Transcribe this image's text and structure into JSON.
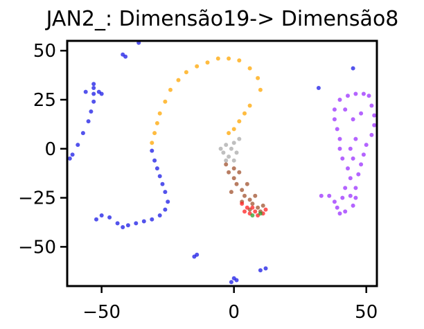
{
  "chart_data": {
    "type": "scatter",
    "title": "JAN2_: Dimensão19-> Dimensão8",
    "xlabel": "",
    "ylabel": "",
    "xlim": [
      -63,
      54
    ],
    "ylim": [
      -70,
      55
    ],
    "xticks": [
      -50,
      0,
      50
    ],
    "yticks": [
      50,
      25,
      0,
      -25,
      -50
    ],
    "xtick_labels": [
      "−50",
      "0",
      "50"
    ],
    "ytick_labels": [
      "50",
      "25",
      "0",
      "−25",
      "−50"
    ],
    "grid": false,
    "legend": "none",
    "colors": {
      "blue": "#1a1ae6",
      "orange": "#ffa500",
      "purple": "#9b30ff",
      "gray": "#a9a9a9",
      "brown": "#a0522d",
      "red": "#ff2020",
      "green": "#2ca02c"
    },
    "series": [
      {
        "color": "#1a1ae6",
        "points": [
          [
            -62,
            -5
          ],
          [
            -61,
            -3
          ],
          [
            -59,
            2
          ],
          [
            -57,
            8
          ],
          [
            -55,
            14
          ],
          [
            -54,
            19
          ],
          [
            -53,
            24
          ],
          [
            -53,
            28
          ],
          [
            -53,
            31
          ],
          [
            -53,
            33
          ],
          [
            -56,
            29
          ],
          [
            -51,
            29
          ],
          [
            -50,
            28
          ],
          [
            -42,
            48
          ],
          [
            -41,
            47
          ],
          [
            -36,
            54
          ],
          [
            -31,
            -1
          ],
          [
            -30,
            -6
          ],
          [
            -29,
            -10
          ],
          [
            -28,
            -14
          ],
          [
            -27,
            -18
          ],
          [
            -26,
            -22
          ],
          [
            -25,
            -27
          ],
          [
            -26,
            -31
          ],
          [
            -28,
            -34
          ],
          [
            -31,
            -36
          ],
          [
            -34,
            -37
          ],
          [
            -37,
            -38
          ],
          [
            -40,
            -39
          ],
          [
            -42,
            -40
          ],
          [
            -44,
            -38
          ],
          [
            -47,
            -35
          ],
          [
            -50,
            -34
          ],
          [
            -52,
            -36
          ],
          [
            -14,
            -54
          ],
          [
            -15,
            -55
          ],
          [
            0,
            -66
          ],
          [
            1,
            -67
          ],
          [
            -1,
            -68
          ],
          [
            10,
            -62
          ],
          [
            12,
            -61
          ],
          [
            32,
            31
          ],
          [
            45,
            41
          ]
        ]
      },
      {
        "color": "#ffa500",
        "points": [
          [
            -31,
            3
          ],
          [
            -30,
            8
          ],
          [
            -29,
            13
          ],
          [
            -28,
            18
          ],
          [
            -26,
            24
          ],
          [
            -24,
            30
          ],
          [
            -21,
            35
          ],
          [
            -18,
            39
          ],
          [
            -14,
            42
          ],
          [
            -10,
            44
          ],
          [
            -6,
            46
          ],
          [
            -2,
            46
          ],
          [
            2,
            45
          ],
          [
            6,
            41
          ],
          [
            9,
            36
          ],
          [
            10,
            30
          ],
          [
            6,
            22
          ],
          [
            4,
            18
          ],
          [
            2,
            14
          ],
          [
            0,
            10
          ],
          [
            -2,
            8
          ]
        ]
      },
      {
        "color": "#9b30ff",
        "points": [
          [
            33,
            -24
          ],
          [
            36,
            -24
          ],
          [
            38,
            -27
          ],
          [
            39,
            -30
          ],
          [
            40,
            -33
          ],
          [
            42,
            -32
          ],
          [
            45,
            -29
          ],
          [
            46,
            -25
          ],
          [
            46,
            -20
          ],
          [
            44,
            -15
          ],
          [
            43,
            -10
          ],
          [
            41,
            -5
          ],
          [
            40,
            0
          ],
          [
            40,
            5
          ],
          [
            39,
            10
          ],
          [
            38,
            15
          ],
          [
            38,
            20
          ],
          [
            40,
            25
          ],
          [
            43,
            27
          ],
          [
            46,
            28
          ],
          [
            49,
            28
          ],
          [
            51,
            27
          ],
          [
            52,
            22
          ],
          [
            53,
            17
          ],
          [
            53,
            12
          ],
          [
            52,
            7
          ],
          [
            50,
            2
          ],
          [
            49,
            -3
          ],
          [
            48,
            -8
          ],
          [
            47,
            -13
          ],
          [
            42,
            20
          ],
          [
            45,
            15
          ],
          [
            48,
            18
          ],
          [
            46,
            5
          ],
          [
            44,
            0
          ],
          [
            45,
            -5
          ],
          [
            42,
            -20
          ],
          [
            41,
            -25
          ],
          [
            44,
            -24
          ]
        ]
      },
      {
        "color": "#a9a9a9",
        "points": [
          [
            -5,
            0
          ],
          [
            -4,
            -2
          ],
          [
            -3,
            2
          ],
          [
            -2,
            -4
          ],
          [
            -1,
            0
          ],
          [
            0,
            3
          ],
          [
            1,
            -2
          ],
          [
            -3,
            -6
          ],
          [
            2,
            5
          ],
          [
            0,
            -6
          ]
        ]
      },
      {
        "color": "#a0522d",
        "points": [
          [
            -3,
            -8
          ],
          [
            -2,
            -12
          ],
          [
            0,
            -15
          ],
          [
            1,
            -18
          ],
          [
            3,
            -21
          ],
          [
            4,
            -24
          ],
          [
            6,
            -26
          ],
          [
            7,
            -28
          ],
          [
            9,
            -30
          ],
          [
            10,
            -32
          ],
          [
            0,
            -10
          ],
          [
            -1,
            -22
          ],
          [
            2,
            -12
          ],
          [
            5,
            -18
          ],
          [
            8,
            -24
          ],
          [
            3,
            -27
          ],
          [
            6,
            -31
          ],
          [
            11,
            -29
          ]
        ]
      },
      {
        "color": "#ff2020",
        "points": [
          [
            3,
            -28
          ],
          [
            5,
            -30
          ],
          [
            6,
            -33
          ],
          [
            8,
            -32
          ],
          [
            9,
            -34
          ],
          [
            11,
            -33
          ],
          [
            12,
            -31
          ],
          [
            4,
            -32
          ],
          [
            7,
            -30
          ]
        ]
      },
      {
        "color": "#2ca02c",
        "points": [
          [
            7,
            -34
          ],
          [
            10,
            -33
          ]
        ]
      }
    ]
  }
}
